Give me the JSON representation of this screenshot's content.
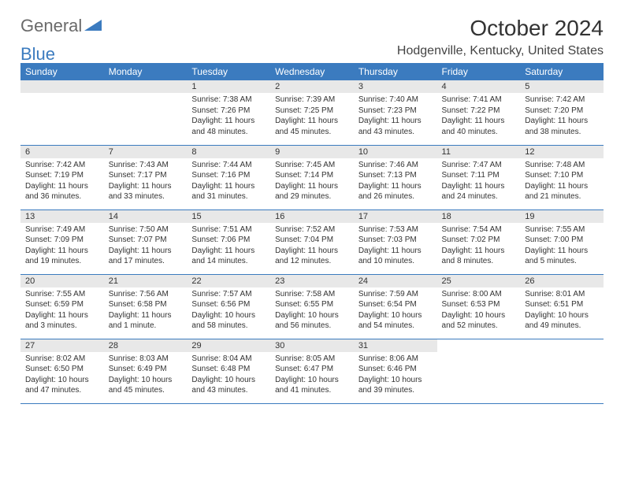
{
  "logo": {
    "word1": "General",
    "word2": "Blue"
  },
  "title": "October 2024",
  "location": "Hodgenville, Kentucky, United States",
  "colors": {
    "header_bg": "#3b7bbf",
    "header_text": "#ffffff",
    "daynum_bg": "#e8e8e8",
    "rule": "#3b7bbf",
    "text": "#333333",
    "logo_gray": "#6a6a6a"
  },
  "typography": {
    "title_fontsize": 28,
    "location_fontsize": 16,
    "header_fontsize": 12,
    "daynum_fontsize": 11,
    "body_fontsize": 10
  },
  "structure": {
    "type": "calendar-table",
    "columns": 7,
    "rows": 5,
    "blank_leading_cells": 2,
    "blank_trailing_cells": 2
  },
  "day_headers": [
    "Sunday",
    "Monday",
    "Tuesday",
    "Wednesday",
    "Thursday",
    "Friday",
    "Saturday"
  ],
  "days": [
    {
      "n": "1",
      "sr": "Sunrise: 7:38 AM",
      "ss": "Sunset: 7:26 PM",
      "dl": "Daylight: 11 hours and 48 minutes."
    },
    {
      "n": "2",
      "sr": "Sunrise: 7:39 AM",
      "ss": "Sunset: 7:25 PM",
      "dl": "Daylight: 11 hours and 45 minutes."
    },
    {
      "n": "3",
      "sr": "Sunrise: 7:40 AM",
      "ss": "Sunset: 7:23 PM",
      "dl": "Daylight: 11 hours and 43 minutes."
    },
    {
      "n": "4",
      "sr": "Sunrise: 7:41 AM",
      "ss": "Sunset: 7:22 PM",
      "dl": "Daylight: 11 hours and 40 minutes."
    },
    {
      "n": "5",
      "sr": "Sunrise: 7:42 AM",
      "ss": "Sunset: 7:20 PM",
      "dl": "Daylight: 11 hours and 38 minutes."
    },
    {
      "n": "6",
      "sr": "Sunrise: 7:42 AM",
      "ss": "Sunset: 7:19 PM",
      "dl": "Daylight: 11 hours and 36 minutes."
    },
    {
      "n": "7",
      "sr": "Sunrise: 7:43 AM",
      "ss": "Sunset: 7:17 PM",
      "dl": "Daylight: 11 hours and 33 minutes."
    },
    {
      "n": "8",
      "sr": "Sunrise: 7:44 AM",
      "ss": "Sunset: 7:16 PM",
      "dl": "Daylight: 11 hours and 31 minutes."
    },
    {
      "n": "9",
      "sr": "Sunrise: 7:45 AM",
      "ss": "Sunset: 7:14 PM",
      "dl": "Daylight: 11 hours and 29 minutes."
    },
    {
      "n": "10",
      "sr": "Sunrise: 7:46 AM",
      "ss": "Sunset: 7:13 PM",
      "dl": "Daylight: 11 hours and 26 minutes."
    },
    {
      "n": "11",
      "sr": "Sunrise: 7:47 AM",
      "ss": "Sunset: 7:11 PM",
      "dl": "Daylight: 11 hours and 24 minutes."
    },
    {
      "n": "12",
      "sr": "Sunrise: 7:48 AM",
      "ss": "Sunset: 7:10 PM",
      "dl": "Daylight: 11 hours and 21 minutes."
    },
    {
      "n": "13",
      "sr": "Sunrise: 7:49 AM",
      "ss": "Sunset: 7:09 PM",
      "dl": "Daylight: 11 hours and 19 minutes."
    },
    {
      "n": "14",
      "sr": "Sunrise: 7:50 AM",
      "ss": "Sunset: 7:07 PM",
      "dl": "Daylight: 11 hours and 17 minutes."
    },
    {
      "n": "15",
      "sr": "Sunrise: 7:51 AM",
      "ss": "Sunset: 7:06 PM",
      "dl": "Daylight: 11 hours and 14 minutes."
    },
    {
      "n": "16",
      "sr": "Sunrise: 7:52 AM",
      "ss": "Sunset: 7:04 PM",
      "dl": "Daylight: 11 hours and 12 minutes."
    },
    {
      "n": "17",
      "sr": "Sunrise: 7:53 AM",
      "ss": "Sunset: 7:03 PM",
      "dl": "Daylight: 11 hours and 10 minutes."
    },
    {
      "n": "18",
      "sr": "Sunrise: 7:54 AM",
      "ss": "Sunset: 7:02 PM",
      "dl": "Daylight: 11 hours and 8 minutes."
    },
    {
      "n": "19",
      "sr": "Sunrise: 7:55 AM",
      "ss": "Sunset: 7:00 PM",
      "dl": "Daylight: 11 hours and 5 minutes."
    },
    {
      "n": "20",
      "sr": "Sunrise: 7:55 AM",
      "ss": "Sunset: 6:59 PM",
      "dl": "Daylight: 11 hours and 3 minutes."
    },
    {
      "n": "21",
      "sr": "Sunrise: 7:56 AM",
      "ss": "Sunset: 6:58 PM",
      "dl": "Daylight: 11 hours and 1 minute."
    },
    {
      "n": "22",
      "sr": "Sunrise: 7:57 AM",
      "ss": "Sunset: 6:56 PM",
      "dl": "Daylight: 10 hours and 58 minutes."
    },
    {
      "n": "23",
      "sr": "Sunrise: 7:58 AM",
      "ss": "Sunset: 6:55 PM",
      "dl": "Daylight: 10 hours and 56 minutes."
    },
    {
      "n": "24",
      "sr": "Sunrise: 7:59 AM",
      "ss": "Sunset: 6:54 PM",
      "dl": "Daylight: 10 hours and 54 minutes."
    },
    {
      "n": "25",
      "sr": "Sunrise: 8:00 AM",
      "ss": "Sunset: 6:53 PM",
      "dl": "Daylight: 10 hours and 52 minutes."
    },
    {
      "n": "26",
      "sr": "Sunrise: 8:01 AM",
      "ss": "Sunset: 6:51 PM",
      "dl": "Daylight: 10 hours and 49 minutes."
    },
    {
      "n": "27",
      "sr": "Sunrise: 8:02 AM",
      "ss": "Sunset: 6:50 PM",
      "dl": "Daylight: 10 hours and 47 minutes."
    },
    {
      "n": "28",
      "sr": "Sunrise: 8:03 AM",
      "ss": "Sunset: 6:49 PM",
      "dl": "Daylight: 10 hours and 45 minutes."
    },
    {
      "n": "29",
      "sr": "Sunrise: 8:04 AM",
      "ss": "Sunset: 6:48 PM",
      "dl": "Daylight: 10 hours and 43 minutes."
    },
    {
      "n": "30",
      "sr": "Sunrise: 8:05 AM",
      "ss": "Sunset: 6:47 PM",
      "dl": "Daylight: 10 hours and 41 minutes."
    },
    {
      "n": "31",
      "sr": "Sunrise: 8:06 AM",
      "ss": "Sunset: 6:46 PM",
      "dl": "Daylight: 10 hours and 39 minutes."
    }
  ]
}
